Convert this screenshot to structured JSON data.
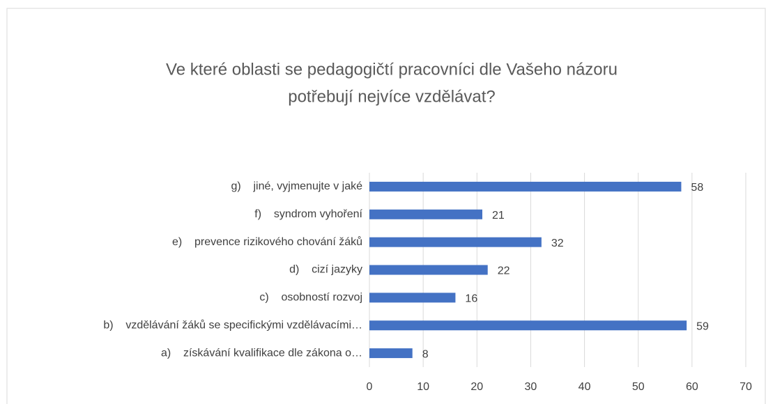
{
  "chart_data": {
    "type": "bar",
    "orientation": "horizontal",
    "title": [
      "Ve které oblasti se pedagogičtí pracovníci dle Vašeho názoru",
      "potřebují nejvíce vzdělávat?"
    ],
    "categories": [
      "g)    jiné, vyjmenujte v jaké",
      "f)    syndrom vyhoření",
      "e)    prevence rizikového chování žáků",
      "d)    cizí jazyky",
      "c)    osobností rozvoj",
      "b)    vzdělávání žáků se specifickými vzdělávacími…",
      "a)    získávání kvalifikace dle zákona o…"
    ],
    "values": [
      58,
      21,
      32,
      22,
      16,
      59,
      8
    ],
    "color": "#4472c4",
    "xlim": [
      0,
      70
    ],
    "xticks": [
      0,
      10,
      20,
      30,
      40,
      50,
      60,
      70
    ],
    "grid": true
  }
}
